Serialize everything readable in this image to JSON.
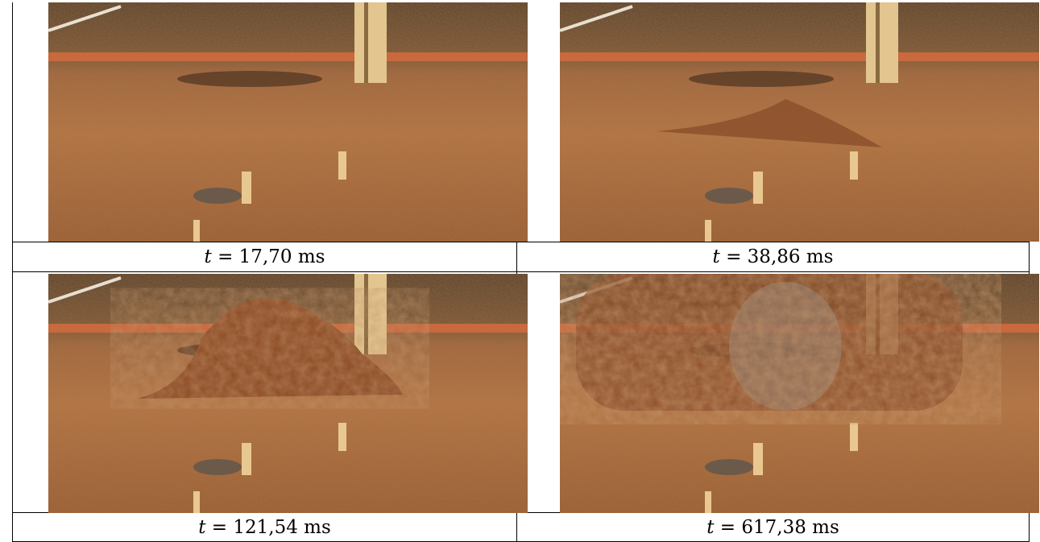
{
  "figure": {
    "panels": [
      {
        "caption": {
          "symbol": "t",
          "value": "= 17,70 ms"
        }
      },
      {
        "caption": {
          "symbol": "t",
          "value": "= 38,86 ms"
        }
      },
      {
        "caption": {
          "symbol": "t",
          "value": "= 121,54 ms"
        }
      },
      {
        "caption": {
          "symbol": "t",
          "value": "= 617,38 ms"
        }
      }
    ]
  }
}
